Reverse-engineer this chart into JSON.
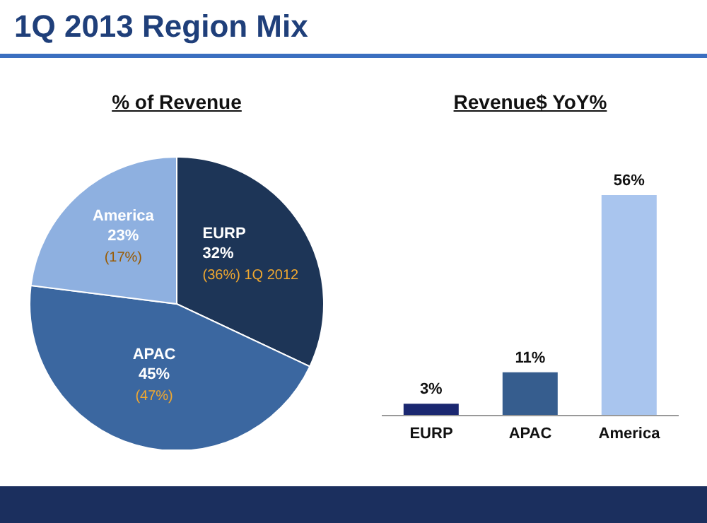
{
  "chart_data": [
    {
      "type": "pie",
      "title": "1Q 2013 Region Mix",
      "subtitle": "% of Revenue",
      "categories": [
        "EURP",
        "APAC",
        "America"
      ],
      "values": [
        32,
        45,
        23
      ],
      "colors": [
        "#1d3557",
        "#3b67a0",
        "#8eb0e0"
      ],
      "value_labels": [
        "32%",
        "45%",
        "23%"
      ],
      "annotations": [
        {
          "text": "(36%) 1Q 2012",
          "x": "EURP"
        },
        {
          "text": "(47%)",
          "x": "APAC"
        },
        {
          "text": "(17%)",
          "x": "America"
        }
      ]
    },
    {
      "type": "bar",
      "title": "Revenue$  YoY%",
      "categories": [
        "EURP",
        "APAC",
        "America"
      ],
      "values": [
        3,
        11,
        56
      ],
      "colors": [
        "#1a2770",
        "#365d8e",
        "#a9c5ee"
      ],
      "value_labels": [
        "3%",
        "11%",
        "56%"
      ]
    }
  ]
}
